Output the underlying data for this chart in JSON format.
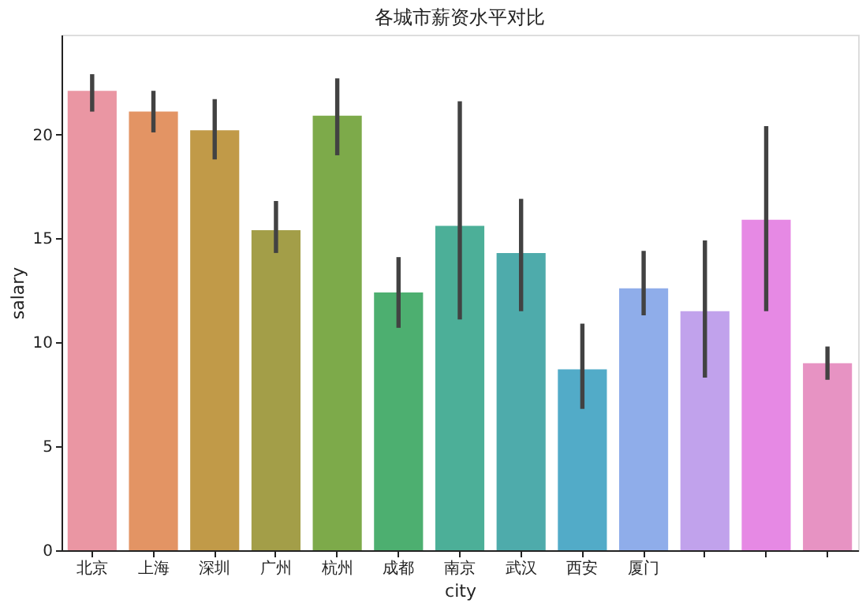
{
  "chart_data": {
    "type": "bar",
    "title": "各城市薪资水平对比",
    "xlabel": "city",
    "ylabel": "salary",
    "categories": [
      "北京",
      "上海",
      "深圳",
      "广州",
      "杭州",
      "成都",
      "南京",
      "武汉",
      "西安",
      "厦门",
      null,
      null,
      null
    ],
    "values": [
      22.1,
      21.1,
      20.2,
      15.4,
      20.9,
      12.4,
      15.6,
      14.3,
      8.7,
      12.6,
      11.5,
      15.9,
      9.0
    ],
    "colors": [
      "#ea96a3",
      "#e39464",
      "#c19a48",
      "#a39e48",
      "#7daa4a",
      "#4daf70",
      "#4caf98",
      "#4eabab",
      "#52abc8",
      "#8fadea",
      "#c1a2ec",
      "#e689e4",
      "#e793c3"
    ],
    "errors": [
      [
        21.1,
        22.9
      ],
      [
        20.1,
        22.1
      ],
      [
        18.8,
        21.7
      ],
      [
        14.3,
        16.8
      ],
      [
        19.0,
        22.7
      ],
      [
        10.7,
        14.1
      ],
      [
        11.1,
        21.6
      ],
      [
        11.5,
        16.9
      ],
      [
        6.8,
        10.9
      ],
      [
        11.3,
        14.4
      ],
      [
        8.3,
        14.9
      ],
      [
        11.5,
        20.4
      ],
      [
        8.2,
        9.8
      ]
    ],
    "ylim": [
      0,
      24.8
    ],
    "yticks": [
      0,
      5,
      10,
      15,
      20
    ],
    "grid": false
  }
}
